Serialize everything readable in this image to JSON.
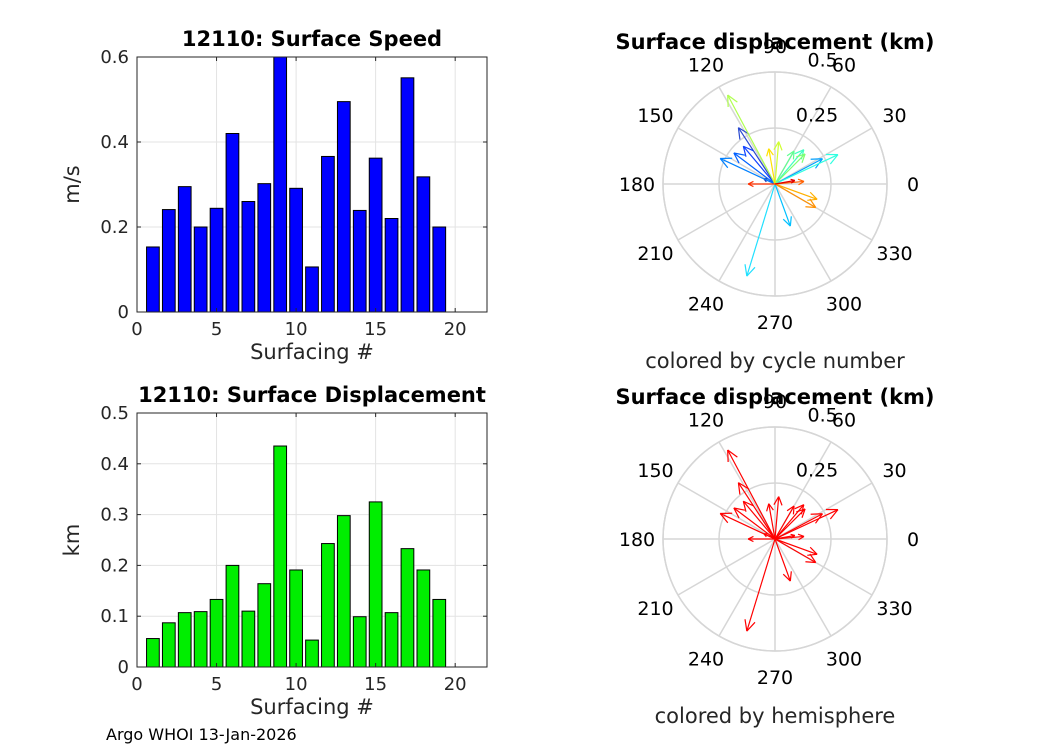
{
  "footer": "Argo WHOI 13-Jan-2026",
  "chart_data": [
    {
      "type": "bar",
      "title": "12110: Surface Speed",
      "xlabel": "Surfacing #",
      "ylabel": "m/s",
      "xlim": [
        0,
        22
      ],
      "ylim": [
        0,
        0.6
      ],
      "xticks": [
        0,
        5,
        10,
        15,
        20
      ],
      "yticks": [
        0,
        0.2,
        0.4,
        0.6
      ],
      "x": [
        1,
        2,
        3,
        4,
        5,
        6,
        7,
        8,
        9,
        10,
        11,
        12,
        13,
        14,
        15,
        16,
        17,
        18,
        19
      ],
      "values": [
        0.153,
        0.241,
        0.295,
        0.2,
        0.244,
        0.42,
        0.26,
        0.302,
        0.6,
        0.291,
        0.106,
        0.366,
        0.495,
        0.239,
        0.362,
        0.22,
        0.551,
        0.318,
        0.2
      ],
      "color": "#0000ff",
      "grid": true
    },
    {
      "type": "compass",
      "title": "Surface displacement (km)",
      "subtitle": "colored by cycle number",
      "rmax": 0.5,
      "radial_ticks": [
        "0.25",
        "0.5"
      ],
      "radial_tick_values": [
        0.25,
        0.5
      ],
      "angle_labels": [
        "0",
        "30",
        "60",
        "90",
        "120",
        "150",
        "180",
        "210",
        "240",
        "270",
        "300",
        "330"
      ],
      "vectors": [
        {
          "angle": 155,
          "r": 0.055,
          "color": "#1e2ea8"
        },
        {
          "angle": 123,
          "r": 0.3,
          "color": "#2a4ad0"
        },
        {
          "angle": 130,
          "r": 0.22,
          "color": "#1040ff"
        },
        {
          "angle": 143,
          "r": 0.23,
          "color": "#0060ff"
        },
        {
          "angle": 155,
          "r": 0.27,
          "color": "#0080ff"
        },
        {
          "angle": 28,
          "r": 0.24,
          "color": "#00a0ff"
        },
        {
          "angle": 290,
          "r": 0.2,
          "color": "#00c0ff"
        },
        {
          "angle": 253,
          "r": 0.43,
          "color": "#20e0ff"
        },
        {
          "angle": 25,
          "r": 0.31,
          "color": "#30ffe0"
        },
        {
          "angle": 50,
          "r": 0.2,
          "color": "#40ffc0"
        },
        {
          "angle": 60,
          "r": 0.17,
          "color": "#60ff90"
        },
        {
          "angle": 45,
          "r": 0.19,
          "color": "#80ff70"
        },
        {
          "angle": 118,
          "r": 0.45,
          "color": "#b0ff50"
        },
        {
          "angle": 85,
          "r": 0.19,
          "color": "#d0ff30"
        },
        {
          "angle": 100,
          "r": 0.16,
          "color": "#ffe000"
        },
        {
          "angle": 340,
          "r": 0.2,
          "color": "#ffb000"
        },
        {
          "angle": 330,
          "r": 0.21,
          "color": "#ff9000"
        },
        {
          "angle": 5,
          "r": 0.13,
          "color": "#ff6000"
        },
        {
          "angle": 180,
          "r": 0.12,
          "color": "#ff3000"
        },
        {
          "angle": 10,
          "r": 0.09,
          "color": "#e00000"
        }
      ]
    },
    {
      "type": "bar",
      "title": "12110: Surface Displacement",
      "xlabel": "Surfacing #",
      "ylabel": "km",
      "xlim": [
        0,
        22
      ],
      "ylim": [
        0,
        0.5
      ],
      "xticks": [
        0,
        5,
        10,
        15,
        20
      ],
      "yticks": [
        0,
        0.1,
        0.2,
        0.3,
        0.4,
        0.5
      ],
      "x": [
        1,
        2,
        3,
        4,
        5,
        6,
        7,
        8,
        9,
        10,
        11,
        12,
        13,
        14,
        15,
        16,
        17,
        18,
        19
      ],
      "values": [
        0.056,
        0.087,
        0.107,
        0.109,
        0.133,
        0.2,
        0.11,
        0.164,
        0.435,
        0.191,
        0.053,
        0.243,
        0.298,
        0.099,
        0.325,
        0.107,
        0.233,
        0.191,
        0.133
      ],
      "color": "#00ee00",
      "grid": true
    },
    {
      "type": "compass",
      "title": "Surface displacement (km)",
      "subtitle": "colored by hemisphere",
      "rmax": 0.5,
      "radial_ticks": [
        "0.25",
        "0.5"
      ],
      "radial_tick_values": [
        0.25,
        0.5
      ],
      "angle_labels": [
        "0",
        "30",
        "60",
        "90",
        "120",
        "150",
        "180",
        "210",
        "240",
        "270",
        "300",
        "330"
      ],
      "vectors": [
        {
          "angle": 155,
          "r": 0.055,
          "color": "#ff0000"
        },
        {
          "angle": 123,
          "r": 0.3,
          "color": "#ff0000"
        },
        {
          "angle": 130,
          "r": 0.22,
          "color": "#ff0000"
        },
        {
          "angle": 143,
          "r": 0.23,
          "color": "#ff0000"
        },
        {
          "angle": 155,
          "r": 0.27,
          "color": "#ff0000"
        },
        {
          "angle": 28,
          "r": 0.24,
          "color": "#ff0000"
        },
        {
          "angle": 290,
          "r": 0.2,
          "color": "#ff0000"
        },
        {
          "angle": 253,
          "r": 0.43,
          "color": "#ff0000"
        },
        {
          "angle": 25,
          "r": 0.31,
          "color": "#ff0000"
        },
        {
          "angle": 50,
          "r": 0.2,
          "color": "#ff0000"
        },
        {
          "angle": 60,
          "r": 0.17,
          "color": "#ff0000"
        },
        {
          "angle": 45,
          "r": 0.19,
          "color": "#ff0000"
        },
        {
          "angle": 118,
          "r": 0.45,
          "color": "#ff0000"
        },
        {
          "angle": 85,
          "r": 0.19,
          "color": "#ff0000"
        },
        {
          "angle": 100,
          "r": 0.16,
          "color": "#ff0000"
        },
        {
          "angle": 340,
          "r": 0.2,
          "color": "#ff0000"
        },
        {
          "angle": 330,
          "r": 0.21,
          "color": "#ff0000"
        },
        {
          "angle": 5,
          "r": 0.13,
          "color": "#ff0000"
        },
        {
          "angle": 180,
          "r": 0.12,
          "color": "#ff0000"
        },
        {
          "angle": 10,
          "r": 0.09,
          "color": "#ff0000"
        }
      ]
    }
  ]
}
